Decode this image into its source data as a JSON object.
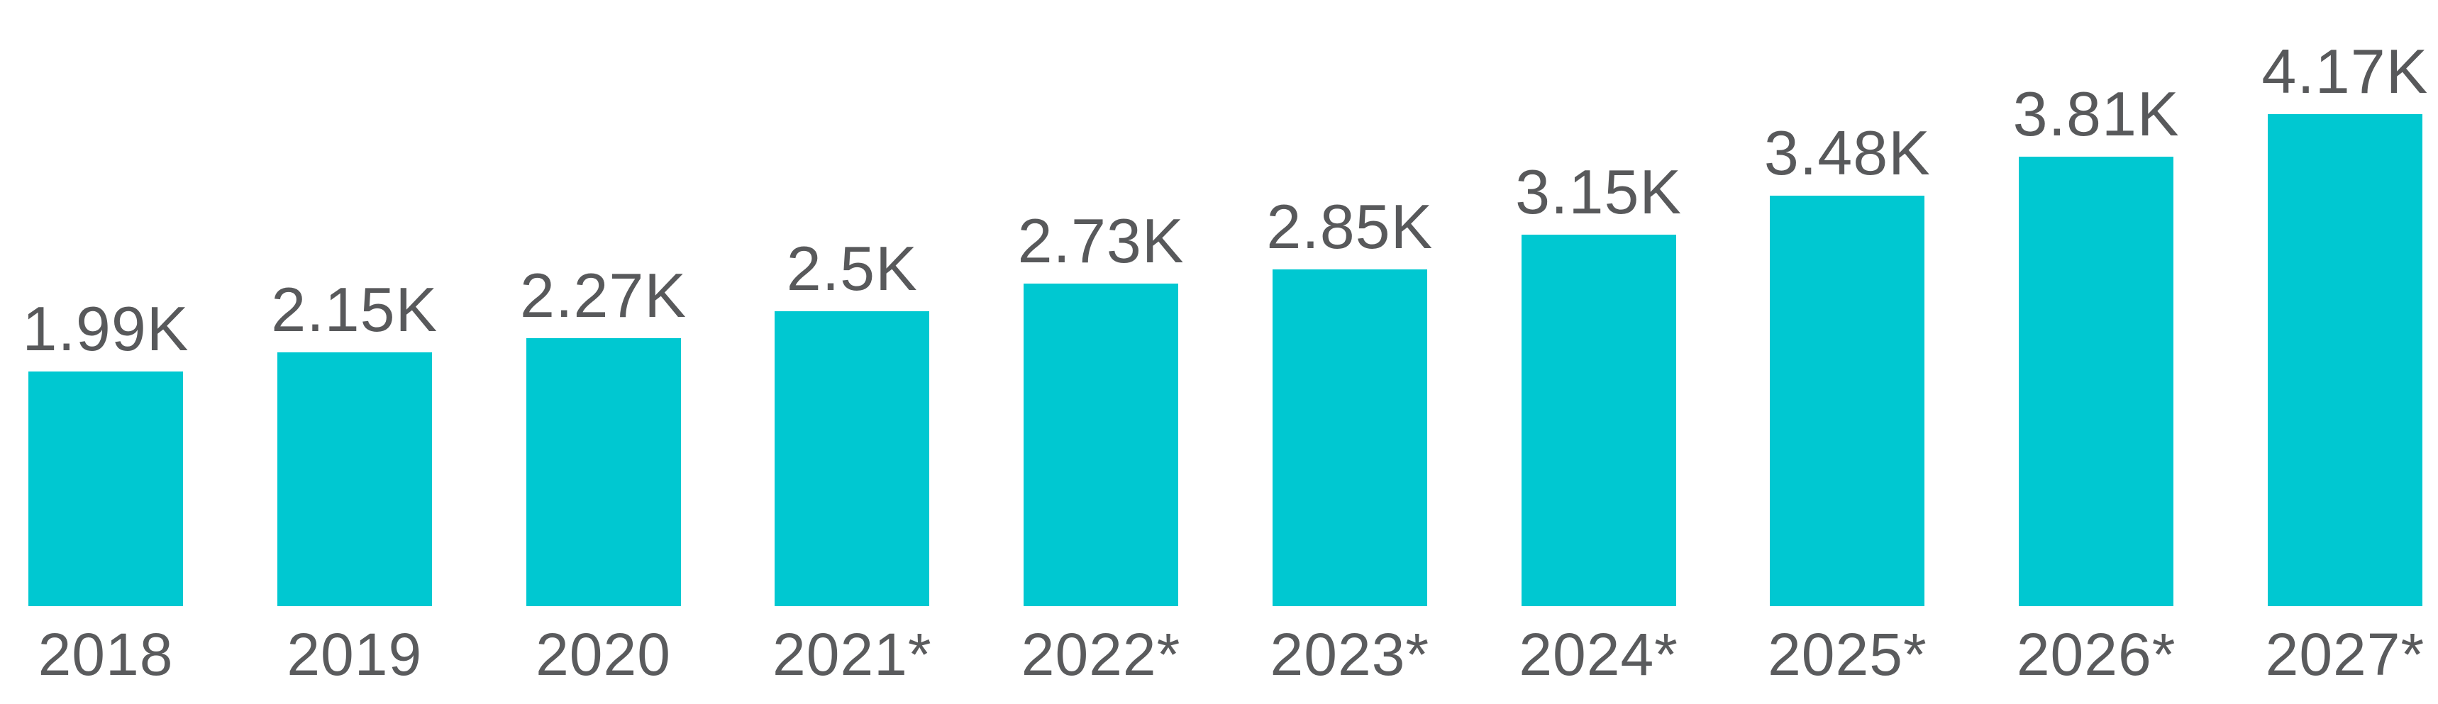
{
  "chart_data": {
    "type": "bar",
    "title": "",
    "xlabel": "",
    "ylabel": "",
    "categories": [
      "2018",
      "2019",
      "2020",
      "2021*",
      "2022*",
      "2023*",
      "2024*",
      "2025*",
      "2026*",
      "2027*"
    ],
    "values": [
      1990,
      2150,
      2270,
      2500,
      2730,
      2850,
      3150,
      3480,
      3810,
      4170
    ],
    "value_labels": [
      "1.99K",
      "2.15K",
      "2.27K",
      "2.5K",
      "2.73K",
      "2.85K",
      "3.15K",
      "3.48K",
      "3.81K",
      "4.17K"
    ],
    "ylim": [
      0,
      4500
    ],
    "grid": false,
    "legend_position": "none",
    "axes_visible": false,
    "bar_color": "#00C8D1",
    "value_label_color": "#58595B",
    "category_label_color": "#5A5B5D"
  }
}
